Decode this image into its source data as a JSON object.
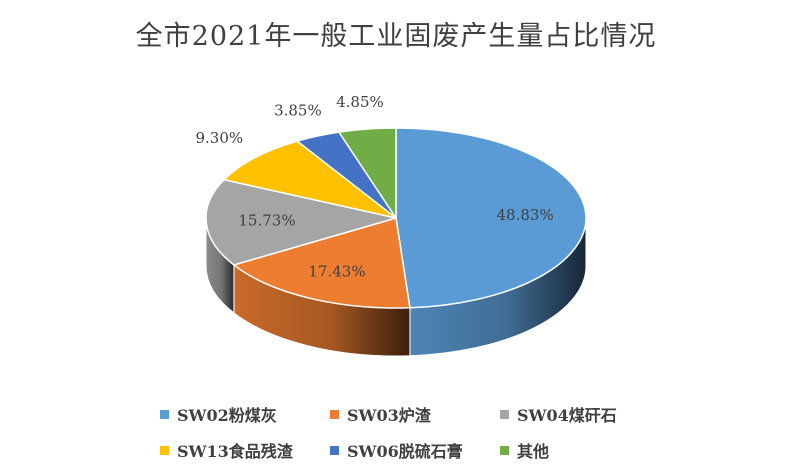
{
  "chart_data": {
    "type": "pie",
    "style": "3d",
    "title": "全市2021年一般工业固废产生量占比情况",
    "legend_position": "bottom",
    "slices": [
      {
        "name": "SW02粉煤灰",
        "value": 48.83,
        "label": "48.83%",
        "color": "#5B9BD5"
      },
      {
        "name": "SW03炉渣",
        "value": 17.43,
        "label": "17.43%",
        "color": "#ED7D31"
      },
      {
        "name": "SW04煤矸石",
        "value": 15.73,
        "label": "15.73%",
        "color": "#A5A5A5"
      },
      {
        "name": "SW13食品残渣",
        "value": 9.3,
        "label": "9.30%",
        "color": "#FFC000"
      },
      {
        "name": "SW06脱硫石膏",
        "value": 3.85,
        "label": "3.85%",
        "color": "#4472C4"
      },
      {
        "name": "其他",
        "value": 4.85,
        "label": "4.85%",
        "color": "#70AD47"
      }
    ]
  }
}
